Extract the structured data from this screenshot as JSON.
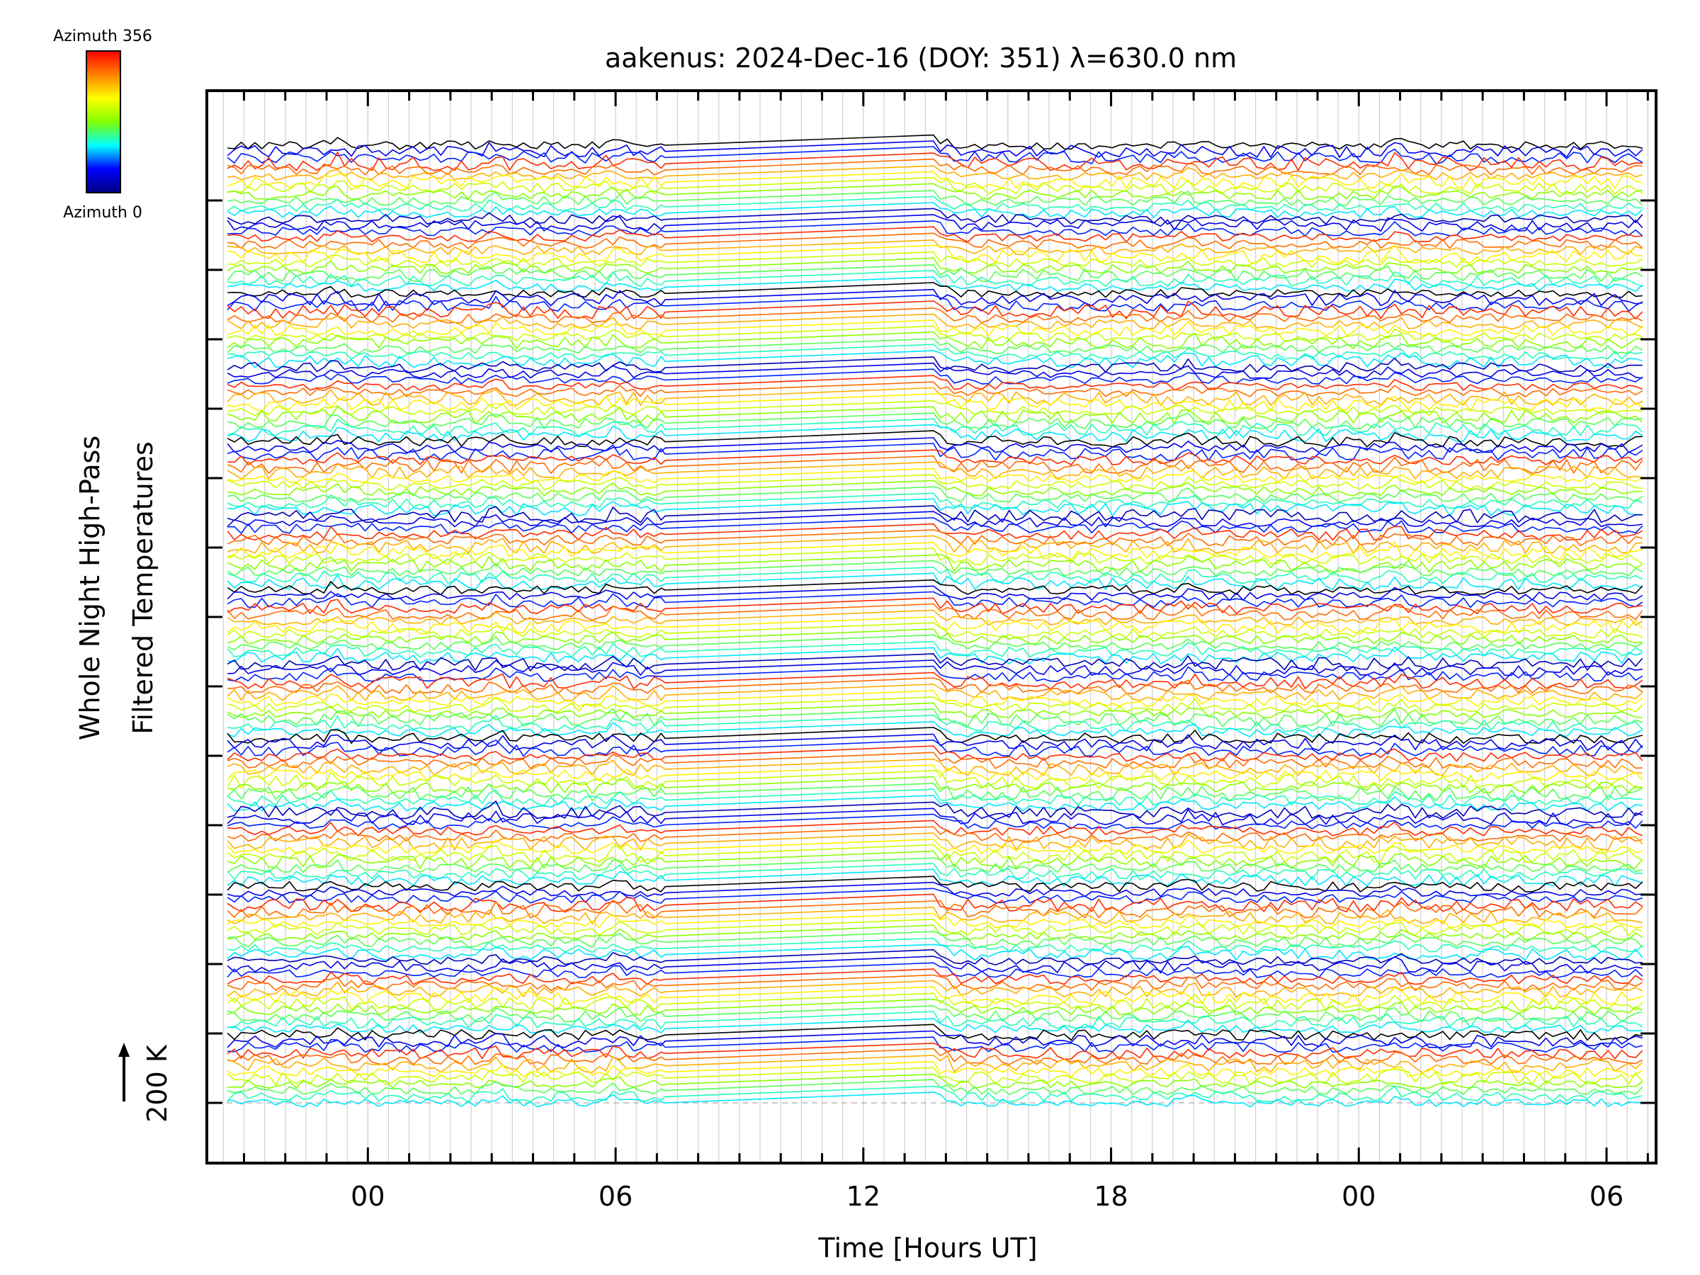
{
  "chart_data": {
    "type": "line",
    "title": "aakenus: 2024-Dec-16 (DOY: 351) λ=630.0 nm",
    "xlabel": "Time [Hours UT]",
    "ylabel_line1": "Whole Night High-Pass",
    "ylabel_line2": "Filtered Temperatures",
    "scale_label": "200 K",
    "x_range_hours": [
      -3.9,
      31.2
    ],
    "x_ticks": [
      {
        "hour": 0,
        "label": "00"
      },
      {
        "hour": 6,
        "label": "06"
      },
      {
        "hour": 12,
        "label": "12"
      },
      {
        "hour": 18,
        "label": "18"
      },
      {
        "hour": 24,
        "label": "00"
      },
      {
        "hour": 30,
        "label": "06"
      }
    ],
    "data_gap_hours": [
      7.2,
      13.7
    ],
    "data_start_hour": -3.4,
    "data_end_hour": 31.0,
    "disturbance_events_hours": [
      -0.8,
      3.1,
      6.0,
      13.9,
      19.9,
      24.9
    ],
    "colorbar": {
      "top_label": "Azimuth 356",
      "bottom_label": "Azimuth 0",
      "colors": [
        "#000080",
        "#0000ff",
        "#00ffff",
        "#7fff00",
        "#ffff00",
        "#ff8000",
        "#ff0000"
      ]
    },
    "azimuth_groups": 13,
    "lines_per_group": 12,
    "grid": true
  }
}
